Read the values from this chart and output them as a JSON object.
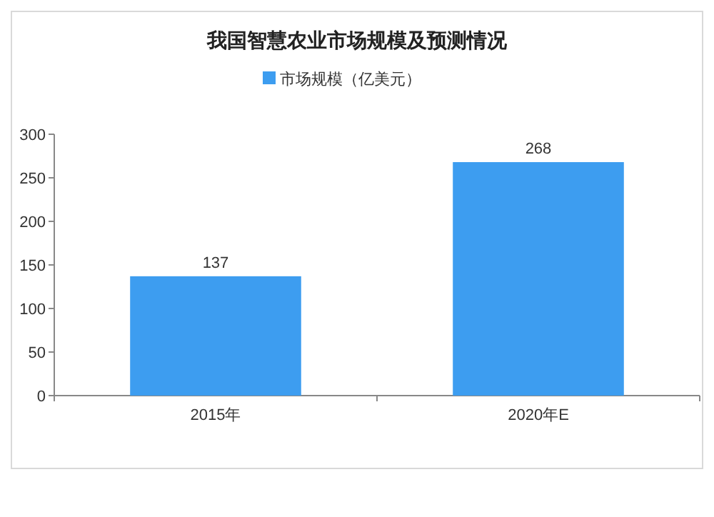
{
  "chart_data": {
    "type": "bar",
    "title": "我国智慧农业市场规模及预测情况",
    "categories": [
      "2015年",
      "2020年E"
    ],
    "series": [
      {
        "name": "市场规模（亿美元）",
        "color": "#3d9df0",
        "values": [
          137,
          268
        ]
      }
    ],
    "ylim": [
      0,
      300
    ],
    "yticks": [
      0,
      50,
      100,
      150,
      200,
      250,
      300
    ],
    "grid": false,
    "legend": "top",
    "data_labels": true
  }
}
